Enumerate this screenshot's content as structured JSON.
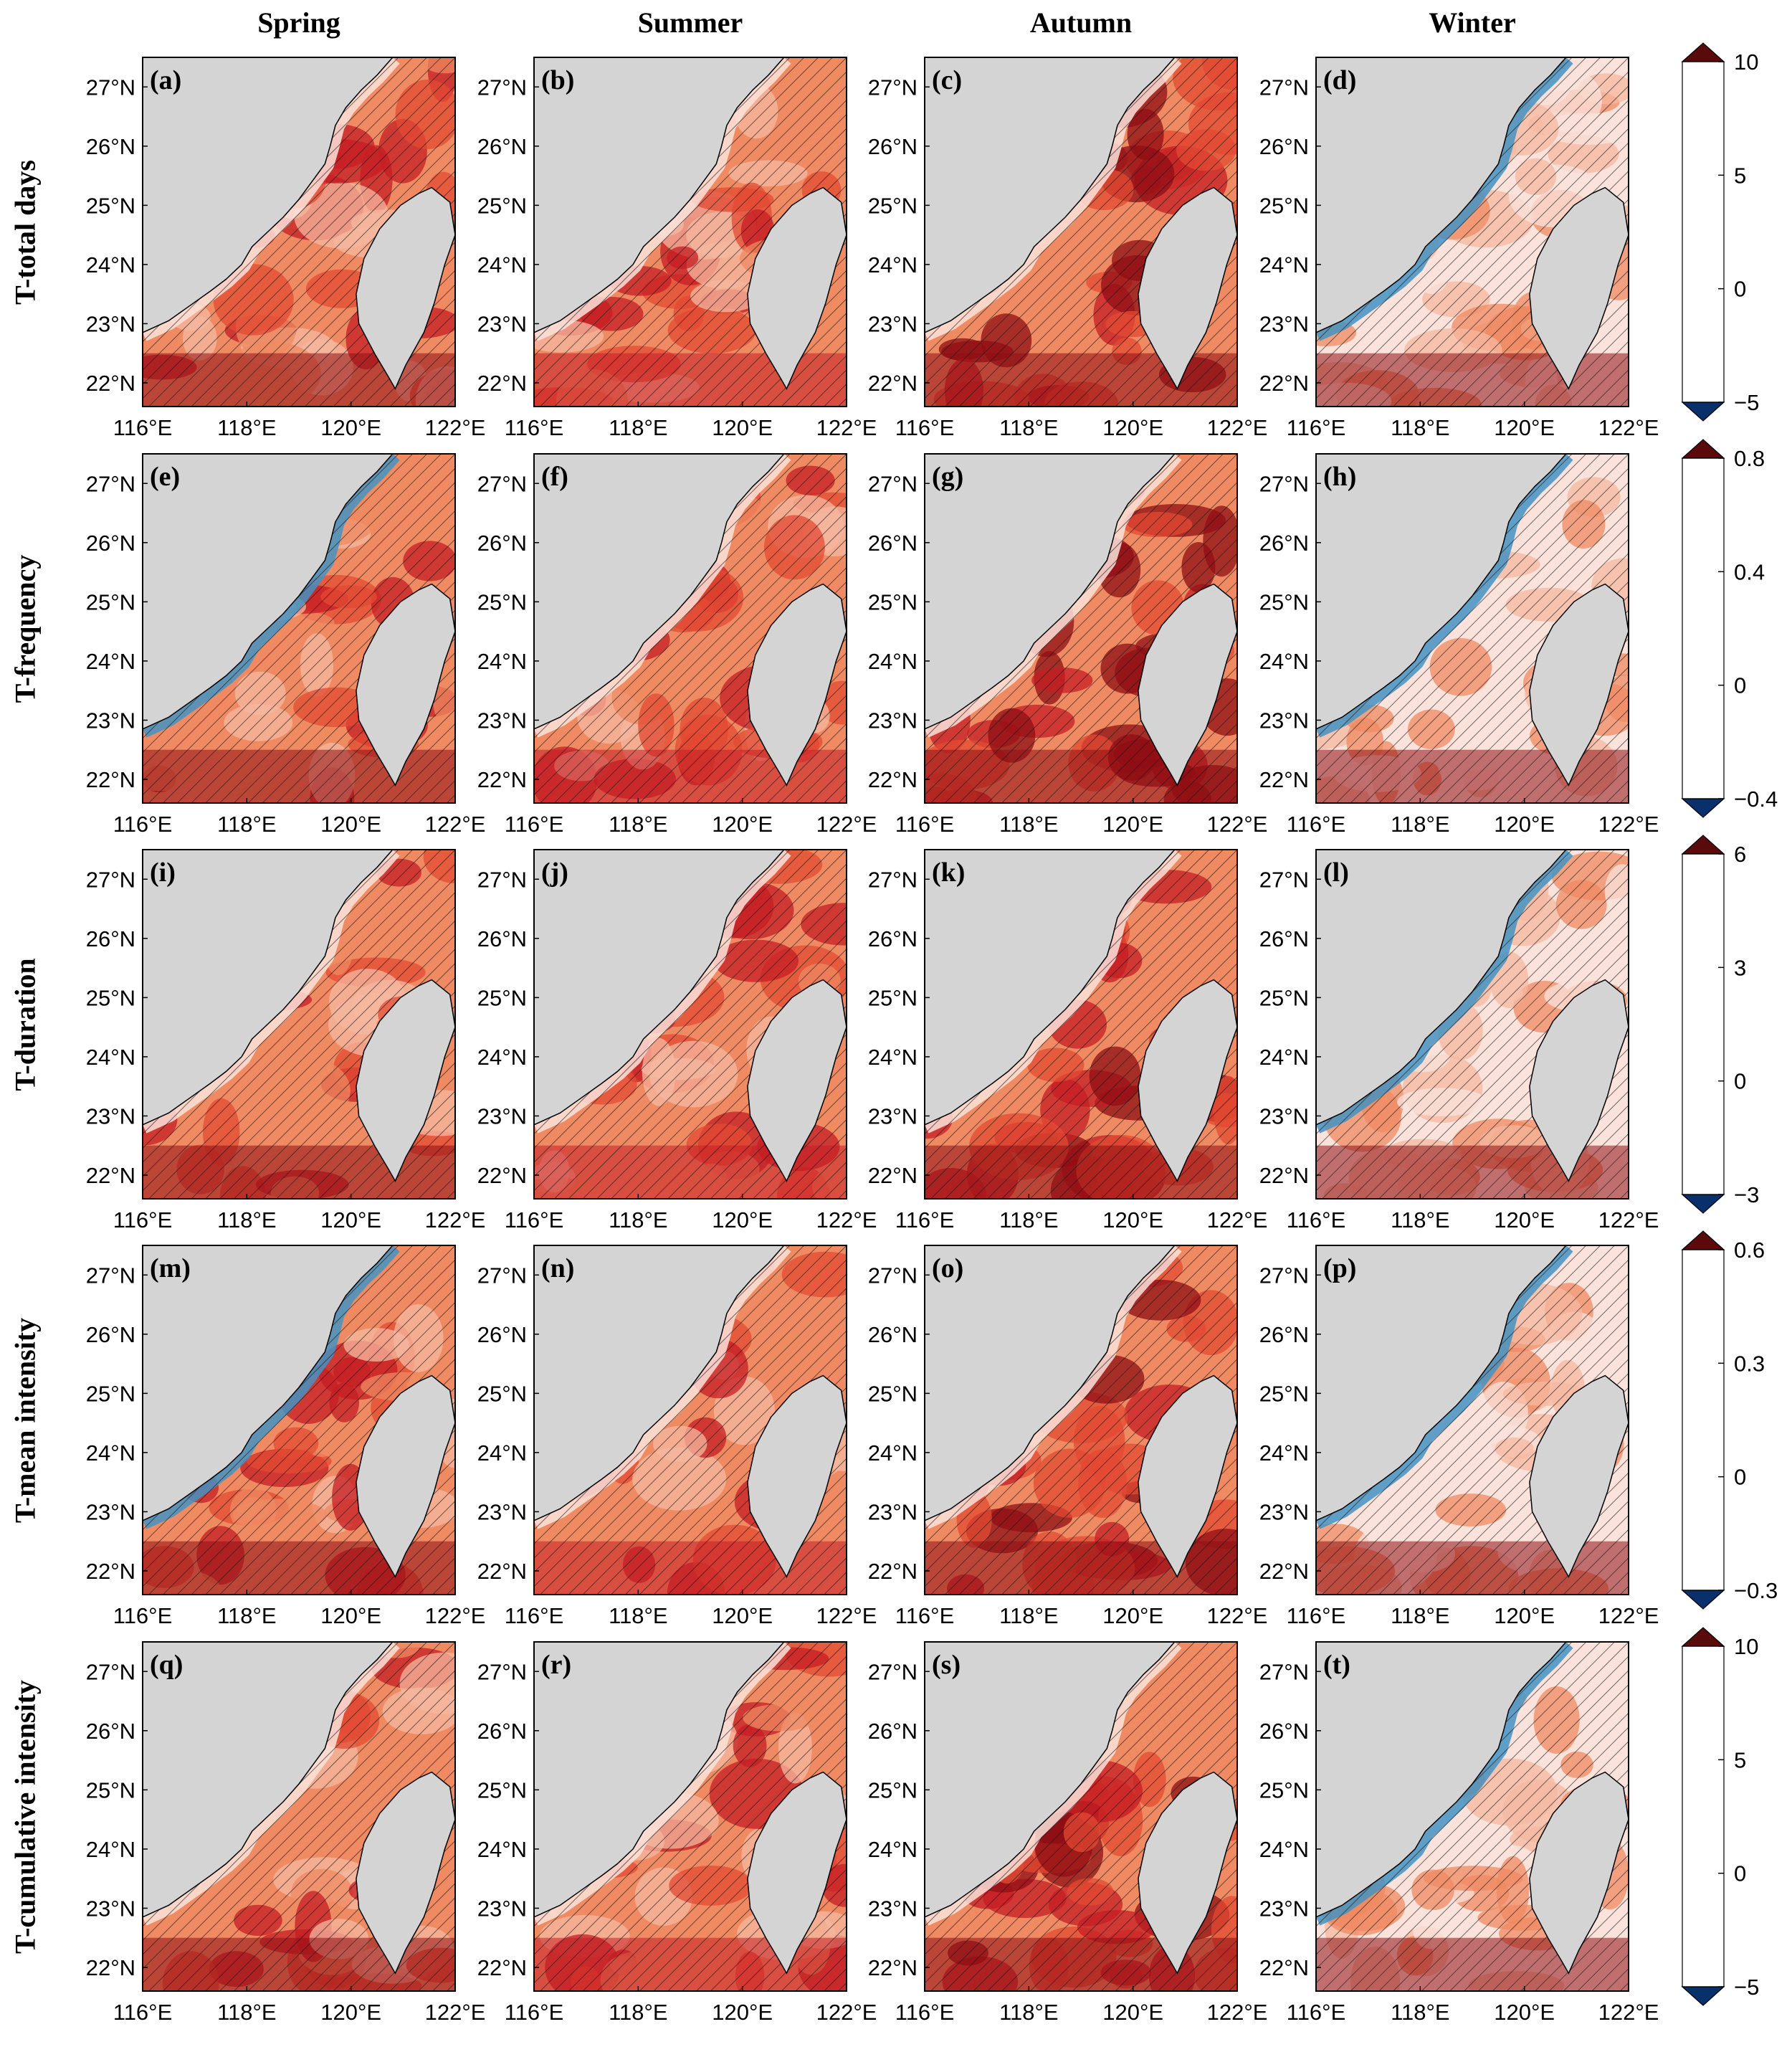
{
  "chart_data": {
    "type": "heatmap",
    "columns": [
      "Spring",
      "Summer",
      "Autumn",
      "Winter"
    ],
    "rows": [
      {
        "title": "T-total days",
        "colorbar": {
          "ticks": [
            "10",
            "5",
            "0",
            "−5"
          ],
          "min": -5,
          "max": 10
        }
      },
      {
        "title": "T-frequency",
        "colorbar": {
          "ticks": [
            "0.8",
            "0.4",
            "0",
            "−0.4"
          ],
          "min": -0.4,
          "max": 0.8
        }
      },
      {
        "title": "T-duration",
        "colorbar": {
          "ticks": [
            "6",
            "3",
            "0",
            "−3"
          ],
          "min": -3,
          "max": 6
        }
      },
      {
        "title": "T-mean intensity",
        "colorbar": {
          "ticks": [
            "0.6",
            "0.3",
            "0",
            "−0.3"
          ],
          "min": -0.3,
          "max": 0.6
        }
      },
      {
        "title": "T-cumulative intensity",
        "colorbar": {
          "ticks": [
            "10",
            "5",
            "0",
            "−5"
          ],
          "min": -5,
          "max": 10
        }
      }
    ],
    "panel_labels": [
      "(a)",
      "(b)",
      "(c)",
      "(d)",
      "(e)",
      "(f)",
      "(g)",
      "(h)",
      "(i)",
      "(j)",
      "(k)",
      "(l)",
      "(m)",
      "(n)",
      "(o)",
      "(p)",
      "(q)",
      "(r)",
      "(s)",
      "(t)"
    ],
    "x_ticks": [
      "116°E",
      "118°E",
      "120°E",
      "122°E"
    ],
    "y_ticks": [
      "27°N",
      "26°N",
      "25°N",
      "24°N",
      "23°N",
      "22°N"
    ],
    "xlim": [
      116,
      122
    ],
    "ylim": [
      21.6,
      27.5
    ],
    "colormap": [
      "#08306b",
      "#2166ac",
      "#4393c3",
      "#92c5de",
      "#dbeff8",
      "#fbe3dc",
      "#f6b8a0",
      "#ef8a62",
      "#e34a33",
      "#c51d24",
      "#8f0e14",
      "#5a0a0a"
    ],
    "colors": {
      "land": "#d4d4d4",
      "hatch": "#1a1a1a",
      "coast": "#000000"
    }
  }
}
